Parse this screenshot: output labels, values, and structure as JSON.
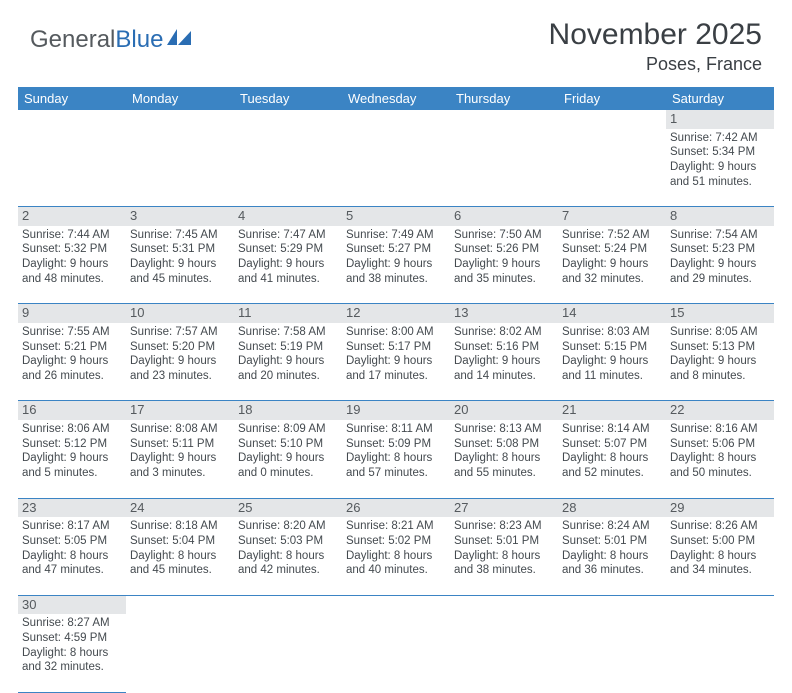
{
  "logo": {
    "general": "General",
    "blue": "Blue"
  },
  "header": {
    "title": "November 2025",
    "location": "Poses, France"
  },
  "colors": {
    "header_bg": "#3b84c4",
    "daynum_bg": "#e4e6e8",
    "text": "#444a4f"
  },
  "weekdays": [
    "Sunday",
    "Monday",
    "Tuesday",
    "Wednesday",
    "Thursday",
    "Friday",
    "Saturday"
  ],
  "weeks": [
    [
      null,
      null,
      null,
      null,
      null,
      null,
      {
        "n": "1",
        "sr": "Sunrise: 7:42 AM",
        "ss": "Sunset: 5:34 PM",
        "d1": "Daylight: 9 hours",
        "d2": "and 51 minutes."
      }
    ],
    [
      {
        "n": "2",
        "sr": "Sunrise: 7:44 AM",
        "ss": "Sunset: 5:32 PM",
        "d1": "Daylight: 9 hours",
        "d2": "and 48 minutes."
      },
      {
        "n": "3",
        "sr": "Sunrise: 7:45 AM",
        "ss": "Sunset: 5:31 PM",
        "d1": "Daylight: 9 hours",
        "d2": "and 45 minutes."
      },
      {
        "n": "4",
        "sr": "Sunrise: 7:47 AM",
        "ss": "Sunset: 5:29 PM",
        "d1": "Daylight: 9 hours",
        "d2": "and 41 minutes."
      },
      {
        "n": "5",
        "sr": "Sunrise: 7:49 AM",
        "ss": "Sunset: 5:27 PM",
        "d1": "Daylight: 9 hours",
        "d2": "and 38 minutes."
      },
      {
        "n": "6",
        "sr": "Sunrise: 7:50 AM",
        "ss": "Sunset: 5:26 PM",
        "d1": "Daylight: 9 hours",
        "d2": "and 35 minutes."
      },
      {
        "n": "7",
        "sr": "Sunrise: 7:52 AM",
        "ss": "Sunset: 5:24 PM",
        "d1": "Daylight: 9 hours",
        "d2": "and 32 minutes."
      },
      {
        "n": "8",
        "sr": "Sunrise: 7:54 AM",
        "ss": "Sunset: 5:23 PM",
        "d1": "Daylight: 9 hours",
        "d2": "and 29 minutes."
      }
    ],
    [
      {
        "n": "9",
        "sr": "Sunrise: 7:55 AM",
        "ss": "Sunset: 5:21 PM",
        "d1": "Daylight: 9 hours",
        "d2": "and 26 minutes."
      },
      {
        "n": "10",
        "sr": "Sunrise: 7:57 AM",
        "ss": "Sunset: 5:20 PM",
        "d1": "Daylight: 9 hours",
        "d2": "and 23 minutes."
      },
      {
        "n": "11",
        "sr": "Sunrise: 7:58 AM",
        "ss": "Sunset: 5:19 PM",
        "d1": "Daylight: 9 hours",
        "d2": "and 20 minutes."
      },
      {
        "n": "12",
        "sr": "Sunrise: 8:00 AM",
        "ss": "Sunset: 5:17 PM",
        "d1": "Daylight: 9 hours",
        "d2": "and 17 minutes."
      },
      {
        "n": "13",
        "sr": "Sunrise: 8:02 AM",
        "ss": "Sunset: 5:16 PM",
        "d1": "Daylight: 9 hours",
        "d2": "and 14 minutes."
      },
      {
        "n": "14",
        "sr": "Sunrise: 8:03 AM",
        "ss": "Sunset: 5:15 PM",
        "d1": "Daylight: 9 hours",
        "d2": "and 11 minutes."
      },
      {
        "n": "15",
        "sr": "Sunrise: 8:05 AM",
        "ss": "Sunset: 5:13 PM",
        "d1": "Daylight: 9 hours",
        "d2": "and 8 minutes."
      }
    ],
    [
      {
        "n": "16",
        "sr": "Sunrise: 8:06 AM",
        "ss": "Sunset: 5:12 PM",
        "d1": "Daylight: 9 hours",
        "d2": "and 5 minutes."
      },
      {
        "n": "17",
        "sr": "Sunrise: 8:08 AM",
        "ss": "Sunset: 5:11 PM",
        "d1": "Daylight: 9 hours",
        "d2": "and 3 minutes."
      },
      {
        "n": "18",
        "sr": "Sunrise: 8:09 AM",
        "ss": "Sunset: 5:10 PM",
        "d1": "Daylight: 9 hours",
        "d2": "and 0 minutes."
      },
      {
        "n": "19",
        "sr": "Sunrise: 8:11 AM",
        "ss": "Sunset: 5:09 PM",
        "d1": "Daylight: 8 hours",
        "d2": "and 57 minutes."
      },
      {
        "n": "20",
        "sr": "Sunrise: 8:13 AM",
        "ss": "Sunset: 5:08 PM",
        "d1": "Daylight: 8 hours",
        "d2": "and 55 minutes."
      },
      {
        "n": "21",
        "sr": "Sunrise: 8:14 AM",
        "ss": "Sunset: 5:07 PM",
        "d1": "Daylight: 8 hours",
        "d2": "and 52 minutes."
      },
      {
        "n": "22",
        "sr": "Sunrise: 8:16 AM",
        "ss": "Sunset: 5:06 PM",
        "d1": "Daylight: 8 hours",
        "d2": "and 50 minutes."
      }
    ],
    [
      {
        "n": "23",
        "sr": "Sunrise: 8:17 AM",
        "ss": "Sunset: 5:05 PM",
        "d1": "Daylight: 8 hours",
        "d2": "and 47 minutes."
      },
      {
        "n": "24",
        "sr": "Sunrise: 8:18 AM",
        "ss": "Sunset: 5:04 PM",
        "d1": "Daylight: 8 hours",
        "d2": "and 45 minutes."
      },
      {
        "n": "25",
        "sr": "Sunrise: 8:20 AM",
        "ss": "Sunset: 5:03 PM",
        "d1": "Daylight: 8 hours",
        "d2": "and 42 minutes."
      },
      {
        "n": "26",
        "sr": "Sunrise: 8:21 AM",
        "ss": "Sunset: 5:02 PM",
        "d1": "Daylight: 8 hours",
        "d2": "and 40 minutes."
      },
      {
        "n": "27",
        "sr": "Sunrise: 8:23 AM",
        "ss": "Sunset: 5:01 PM",
        "d1": "Daylight: 8 hours",
        "d2": "and 38 minutes."
      },
      {
        "n": "28",
        "sr": "Sunrise: 8:24 AM",
        "ss": "Sunset: 5:01 PM",
        "d1": "Daylight: 8 hours",
        "d2": "and 36 minutes."
      },
      {
        "n": "29",
        "sr": "Sunrise: 8:26 AM",
        "ss": "Sunset: 5:00 PM",
        "d1": "Daylight: 8 hours",
        "d2": "and 34 minutes."
      }
    ],
    [
      {
        "n": "30",
        "sr": "Sunrise: 8:27 AM",
        "ss": "Sunset: 4:59 PM",
        "d1": "Daylight: 8 hours",
        "d2": "and 32 minutes."
      },
      null,
      null,
      null,
      null,
      null,
      null
    ]
  ]
}
